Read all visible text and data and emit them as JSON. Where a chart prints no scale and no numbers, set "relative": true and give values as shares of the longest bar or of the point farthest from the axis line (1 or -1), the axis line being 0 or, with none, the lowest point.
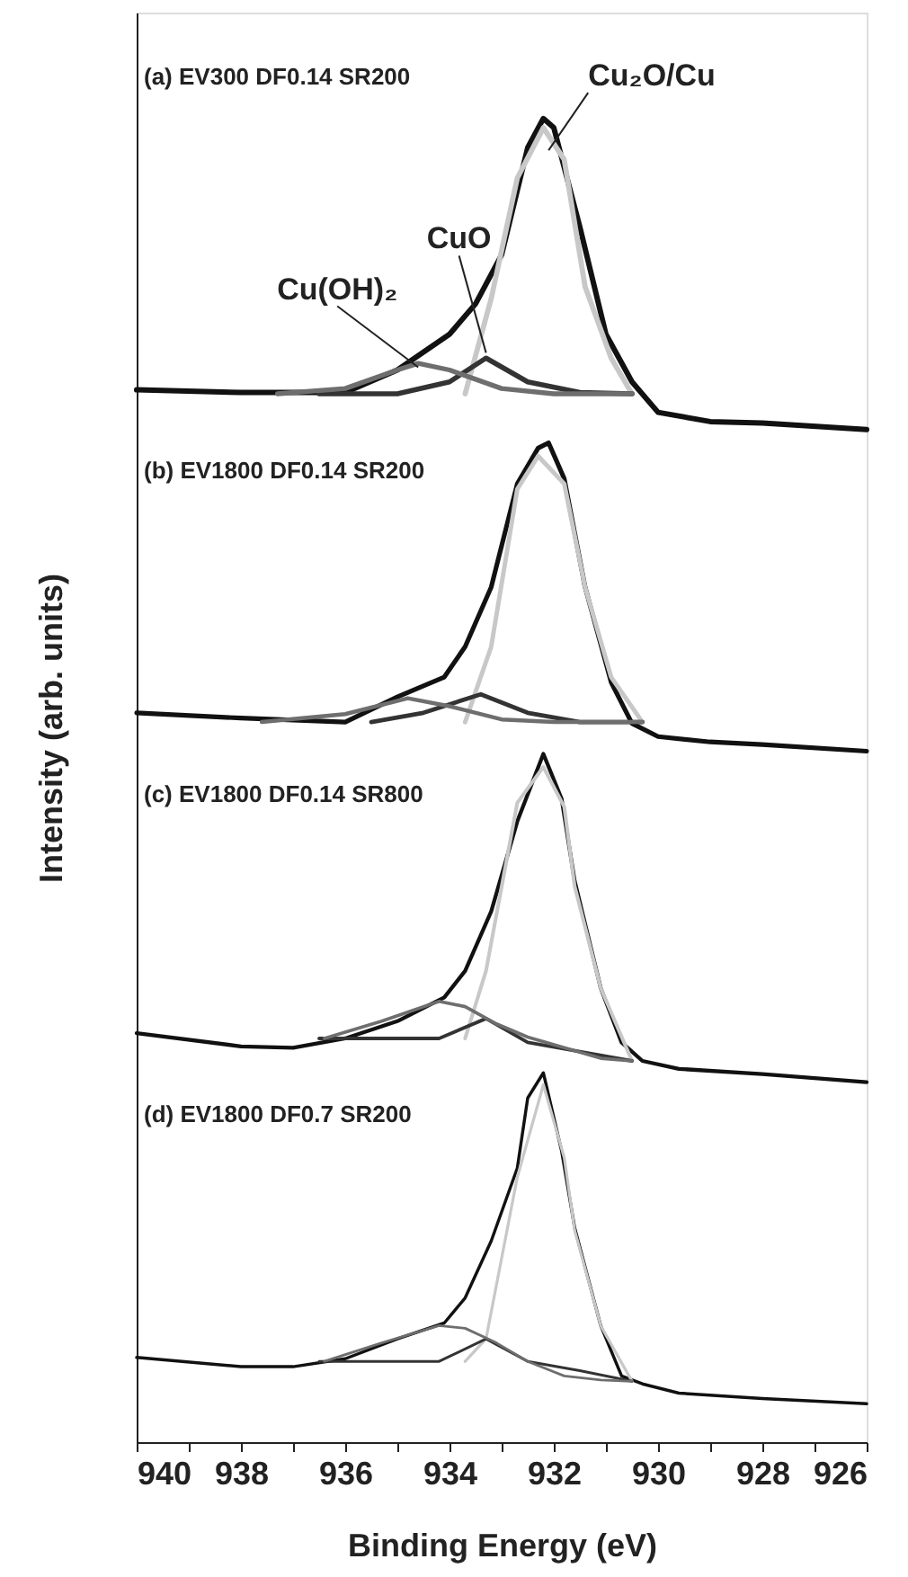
{
  "chart_data": {
    "type": "line",
    "xlabel": "Binding Energy (eV)",
    "ylabel": "Intensity (arb. units)",
    "relative": true,
    "xlim": [
      940,
      926
    ],
    "xticks": [
      940,
      {
        "value": 939,
        "label": null
      },
      938,
      {
        "value": 937,
        "label": null
      },
      936,
      {
        "value": 935,
        "label": null
      },
      934,
      {
        "value": 933,
        "label": null
      },
      932,
      {
        "value": 931,
        "label": null
      },
      930,
      {
        "value": 929,
        "label": null
      },
      928,
      {
        "value": 927,
        "label": null
      },
      926
    ],
    "tick_labels": "x",
    "grid": false,
    "marker": "none",
    "line_style": "solid",
    "annotations": [
      "(a) EV300 DF0.14 SR200",
      "(b) EV1800 DF0.14 SR200",
      "(c) EV1800 DF0.14 SR800",
      "(d) EV1800 DF0.7 SR200",
      {
        "text": "Cu₂O/Cu",
        "x": 932.1,
        "y": 0.976
      },
      {
        "text": "CuO",
        "x": 933.3,
        "y": 0.823
      },
      {
        "text": "Cu(OH)₂",
        "x": 934.6,
        "y": 0.812
      }
    ],
    "series": [
      {
        "color": "#111111",
        "x": [
          940,
          938,
          936,
          935,
          934,
          933.5,
          933,
          932.5,
          932.2,
          932,
          931.5,
          931,
          930.5,
          930,
          929,
          928,
          926
        ],
        "values": [
          0.795,
          0.793,
          0.793,
          0.81,
          0.837,
          0.86,
          0.897,
          0.978,
          1.0,
          0.993,
          0.918,
          0.837,
          0.801,
          0.778,
          0.771,
          0.77,
          0.765
        ]
      },
      {
        "color": "#c8c8c8",
        "x": [
          933.7,
          933.2,
          932.7,
          932.2,
          931.8,
          931.4,
          930.9,
          930.5
        ],
        "values": [
          0.792,
          0.864,
          0.955,
          0.993,
          0.969,
          0.873,
          0.819,
          0.792
        ]
      },
      {
        "color": "#333333",
        "x": [
          936.5,
          935,
          934,
          933.3,
          932.5,
          931.5,
          930.5
        ],
        "values": [
          0.792,
          0.792,
          0.801,
          0.819,
          0.801,
          0.793,
          0.792
        ]
      },
      {
        "color": "#6e6e6e",
        "x": [
          937.3,
          936,
          935,
          934.6,
          934,
          933,
          932,
          930.5
        ],
        "values": [
          0.792,
          0.796,
          0.81,
          0.815,
          0.81,
          0.796,
          0.792,
          0.792
        ]
      },
      {
        "color": "#111111",
        "x": [
          940,
          938,
          936,
          935,
          934.1,
          933.7,
          933.2,
          932.7,
          932.3,
          932.1,
          931.8,
          931.4,
          930.9,
          930.5,
          930,
          929,
          928,
          926
        ],
        "values": [
          0.551,
          0.547,
          0.544,
          0.563,
          0.578,
          0.601,
          0.646,
          0.724,
          0.751,
          0.755,
          0.728,
          0.646,
          0.574,
          0.543,
          0.533,
          0.529,
          0.527,
          0.522
        ]
      },
      {
        "color": "#c8c8c8",
        "x": [
          933.7,
          933.2,
          932.7,
          932.3,
          931.8,
          931.4,
          930.9,
          930.3
        ],
        "values": [
          0.544,
          0.601,
          0.72,
          0.745,
          0.724,
          0.646,
          0.578,
          0.544
        ]
      },
      {
        "color": "#333333",
        "x": [
          935.5,
          934.5,
          933.4,
          932.5,
          931.5,
          930.3
        ],
        "values": [
          0.544,
          0.551,
          0.565,
          0.551,
          0.544,
          0.544
        ]
      },
      {
        "color": "#6e6e6e",
        "x": [
          937.6,
          936,
          934.8,
          934,
          933,
          932,
          930.3
        ],
        "values": [
          0.544,
          0.55,
          0.562,
          0.556,
          0.546,
          0.544,
          0.544
        ]
      },
      {
        "color": "#111111",
        "x": [
          940,
          938,
          937,
          936,
          935,
          934.1,
          933.7,
          933.2,
          932.7,
          932.2,
          931.85,
          931.6,
          931.1,
          930.7,
          930.3,
          929.6,
          928,
          926
        ],
        "values": [
          0.309,
          0.299,
          0.298,
          0.305,
          0.318,
          0.336,
          0.356,
          0.401,
          0.469,
          0.52,
          0.486,
          0.424,
          0.343,
          0.302,
          0.288,
          0.282,
          0.278,
          0.272
        ]
      },
      {
        "color": "#c8c8c8",
        "x": [
          933.7,
          933.3,
          932.7,
          932.2,
          931.8,
          931.6,
          931.1,
          930.5
        ],
        "values": [
          0.305,
          0.356,
          0.483,
          0.51,
          0.48,
          0.42,
          0.343,
          0.288
        ]
      },
      {
        "color": "#333333",
        "x": [
          936.5,
          934.2,
          933.3,
          932.5,
          931.5,
          930.5
        ],
        "values": [
          0.305,
          0.305,
          0.32,
          0.302,
          0.295,
          0.288
        ]
      },
      {
        "color": "#6e6e6e",
        "x": [
          936.4,
          935.3,
          934.2,
          933.7,
          933.1,
          932.5,
          931.8,
          931.1,
          930.5
        ],
        "values": [
          0.305,
          0.318,
          0.333,
          0.329,
          0.316,
          0.306,
          0.298,
          0.29,
          0.288
        ]
      },
      {
        "color": "#111111",
        "x": [
          940,
          938,
          937,
          936,
          935,
          934.1,
          933.7,
          933.2,
          932.7,
          932.5,
          932.2,
          931.85,
          931.6,
          931.1,
          930.7,
          930.3,
          929.6,
          928,
          926
        ],
        "values": [
          0.064,
          0.057,
          0.057,
          0.063,
          0.078,
          0.09,
          0.109,
          0.152,
          0.207,
          0.26,
          0.279,
          0.22,
          0.162,
          0.088,
          0.05,
          0.044,
          0.037,
          0.033,
          0.029
        ]
      },
      {
        "color": "#c8c8c8",
        "x": [
          933.7,
          933.3,
          932.7,
          932.2,
          931.8,
          931.6,
          931.1,
          930.5
        ],
        "values": [
          0.061,
          0.078,
          0.2,
          0.27,
          0.215,
          0.16,
          0.088,
          0.046
        ]
      },
      {
        "color": "#333333",
        "x": [
          936.5,
          934.2,
          933.3,
          932.5,
          931.5,
          930.5
        ],
        "values": [
          0.061,
          0.061,
          0.078,
          0.061,
          0.054,
          0.046
        ]
      },
      {
        "color": "#6e6e6e",
        "x": [
          936.4,
          935.3,
          934.2,
          933.7,
          933.1,
          932.5,
          931.8,
          931.1,
          930.5
        ],
        "values": [
          0.061,
          0.075,
          0.088,
          0.086,
          0.075,
          0.061,
          0.05,
          0.047,
          0.046
        ]
      }
    ]
  }
}
